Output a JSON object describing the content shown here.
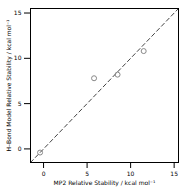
{
  "chart_data": {
    "type": "scatter",
    "xlabel": "MP2 Relative Stability / kcal mol⁻¹",
    "ylabel": "H–Bond Model Relative Stability / kcal mol⁻¹",
    "xlim": [
      -1.5,
      15.5
    ],
    "ylim": [
      -1.5,
      15.5
    ],
    "xticks": [
      0,
      5,
      10,
      15
    ],
    "yticks": [
      0,
      5,
      10,
      15
    ],
    "grid": false,
    "series": [
      {
        "type": "scatter",
        "marker": "open_circle",
        "color": "#888888",
        "x": [
          -0.4,
          5.8,
          8.5,
          11.5
        ],
        "values": [
          -0.4,
          7.8,
          8.2,
          10.8
        ]
      },
      {
        "type": "line",
        "line_style": "dashed",
        "color": "#444444",
        "x": [
          -1.5,
          15.5
        ],
        "values": [
          -1.5,
          15.5
        ]
      }
    ]
  }
}
